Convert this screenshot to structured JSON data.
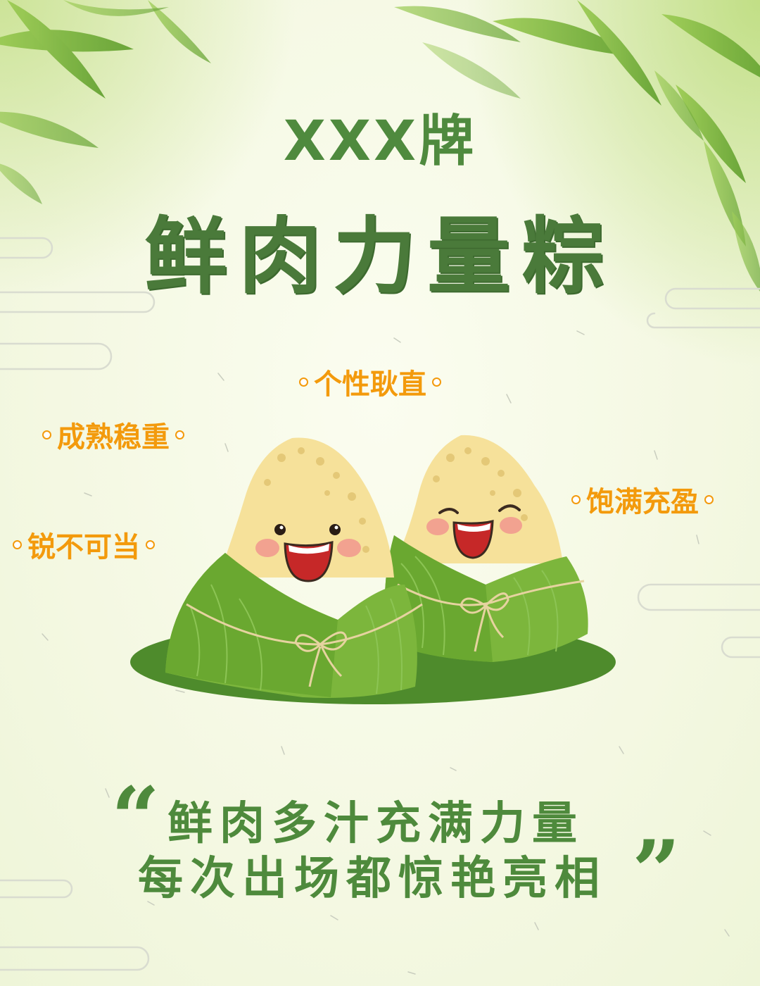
{
  "brand": "XXX牌",
  "headline": "鲜肉力量粽",
  "tags": [
    "个性耿直",
    "成熟稳重",
    "饱满充盈",
    "锐不可当"
  ],
  "slogan": {
    "open_quote": "“",
    "line1": "鲜肉多汁充满力量",
    "line2": "每次出场都惊艳亮相",
    "close_quote": "”"
  },
  "colors": {
    "title_green": "#4a7a3a",
    "tag_orange": "#f39a0c",
    "leaf_green": "#6aa839",
    "rice": "#f6e19a",
    "plate": "#4f8a2c"
  },
  "illustration": {
    "left": "smiling-zongzi",
    "right": "laughing-zongzi",
    "plate": "leaf-plate"
  }
}
